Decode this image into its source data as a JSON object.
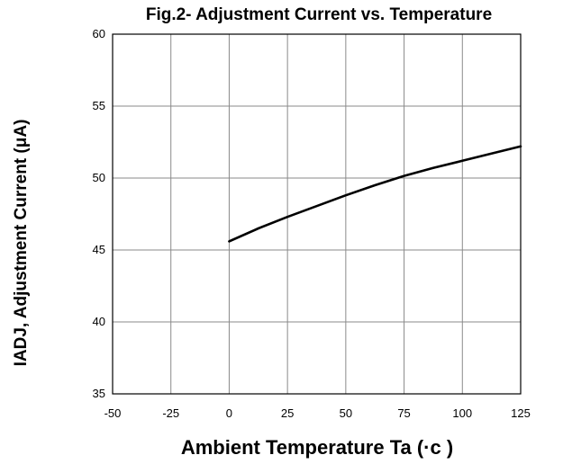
{
  "chart_data": {
    "type": "line",
    "title": "Fig.2- Adjustment Current vs. Temperature",
    "xlabel": "Ambient Temperature Ta (·c )",
    "ylabel": "IADJ, Adjustment Current (μA)",
    "xlim": [
      -50,
      125
    ],
    "ylim": [
      35,
      60
    ],
    "x_ticks": [
      -50,
      -25,
      0,
      25,
      50,
      75,
      100,
      125
    ],
    "y_ticks": [
      35,
      40,
      45,
      50,
      55,
      60
    ],
    "grid": true,
    "legend": "none",
    "series": [
      {
        "color": "#000000",
        "x": [
          0,
          12.5,
          25,
          37.5,
          50,
          62.5,
          75,
          87.5,
          100,
          112.5,
          125
        ],
        "y": [
          45.6,
          46.5,
          47.3,
          48.05,
          48.8,
          49.5,
          50.15,
          50.7,
          51.2,
          51.7,
          52.2
        ]
      }
    ]
  }
}
